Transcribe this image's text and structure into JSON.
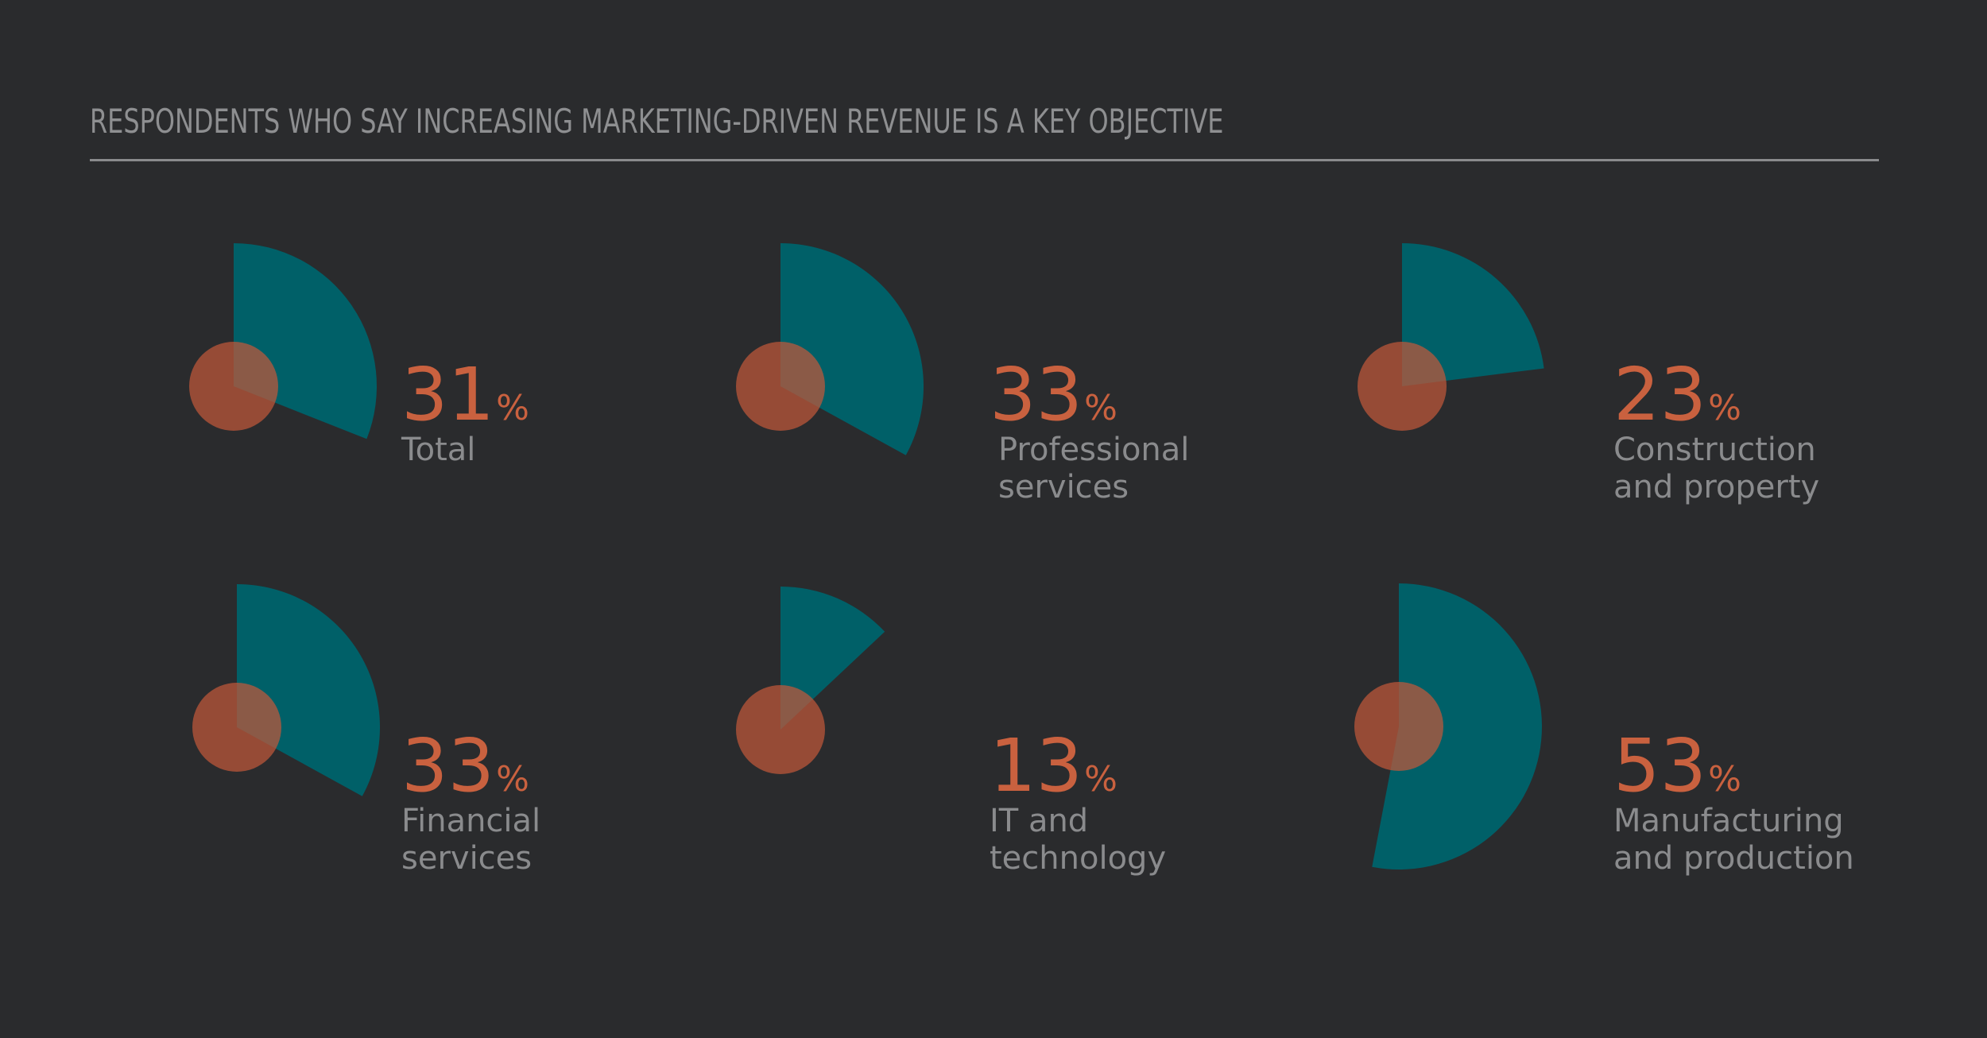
{
  "chart_data": {
    "type": "pie",
    "title": "RESPONDENTS WHO SAY INCREASING MARKETING-DRIVEN REVENUE IS A KEY OBJECTIVE",
    "unit": "%",
    "items": [
      {
        "value": 31,
        "label_lines": [
          "Total"
        ]
      },
      {
        "value": 33,
        "label_lines": [
          "Professional",
          "services"
        ]
      },
      {
        "value": 23,
        "label_lines": [
          "Construction",
          "and property"
        ]
      },
      {
        "value": 33,
        "label_lines": [
          "Financial",
          "services"
        ]
      },
      {
        "value": 13,
        "label_lines": [
          "IT and",
          "technology"
        ]
      },
      {
        "value": 53,
        "label_lines": [
          "Manufacturing",
          "and production"
        ]
      }
    ],
    "colors": {
      "segment": "#006068",
      "center": "#c0583a",
      "percent": "#c9613f",
      "label": "#8a8b8d"
    }
  }
}
